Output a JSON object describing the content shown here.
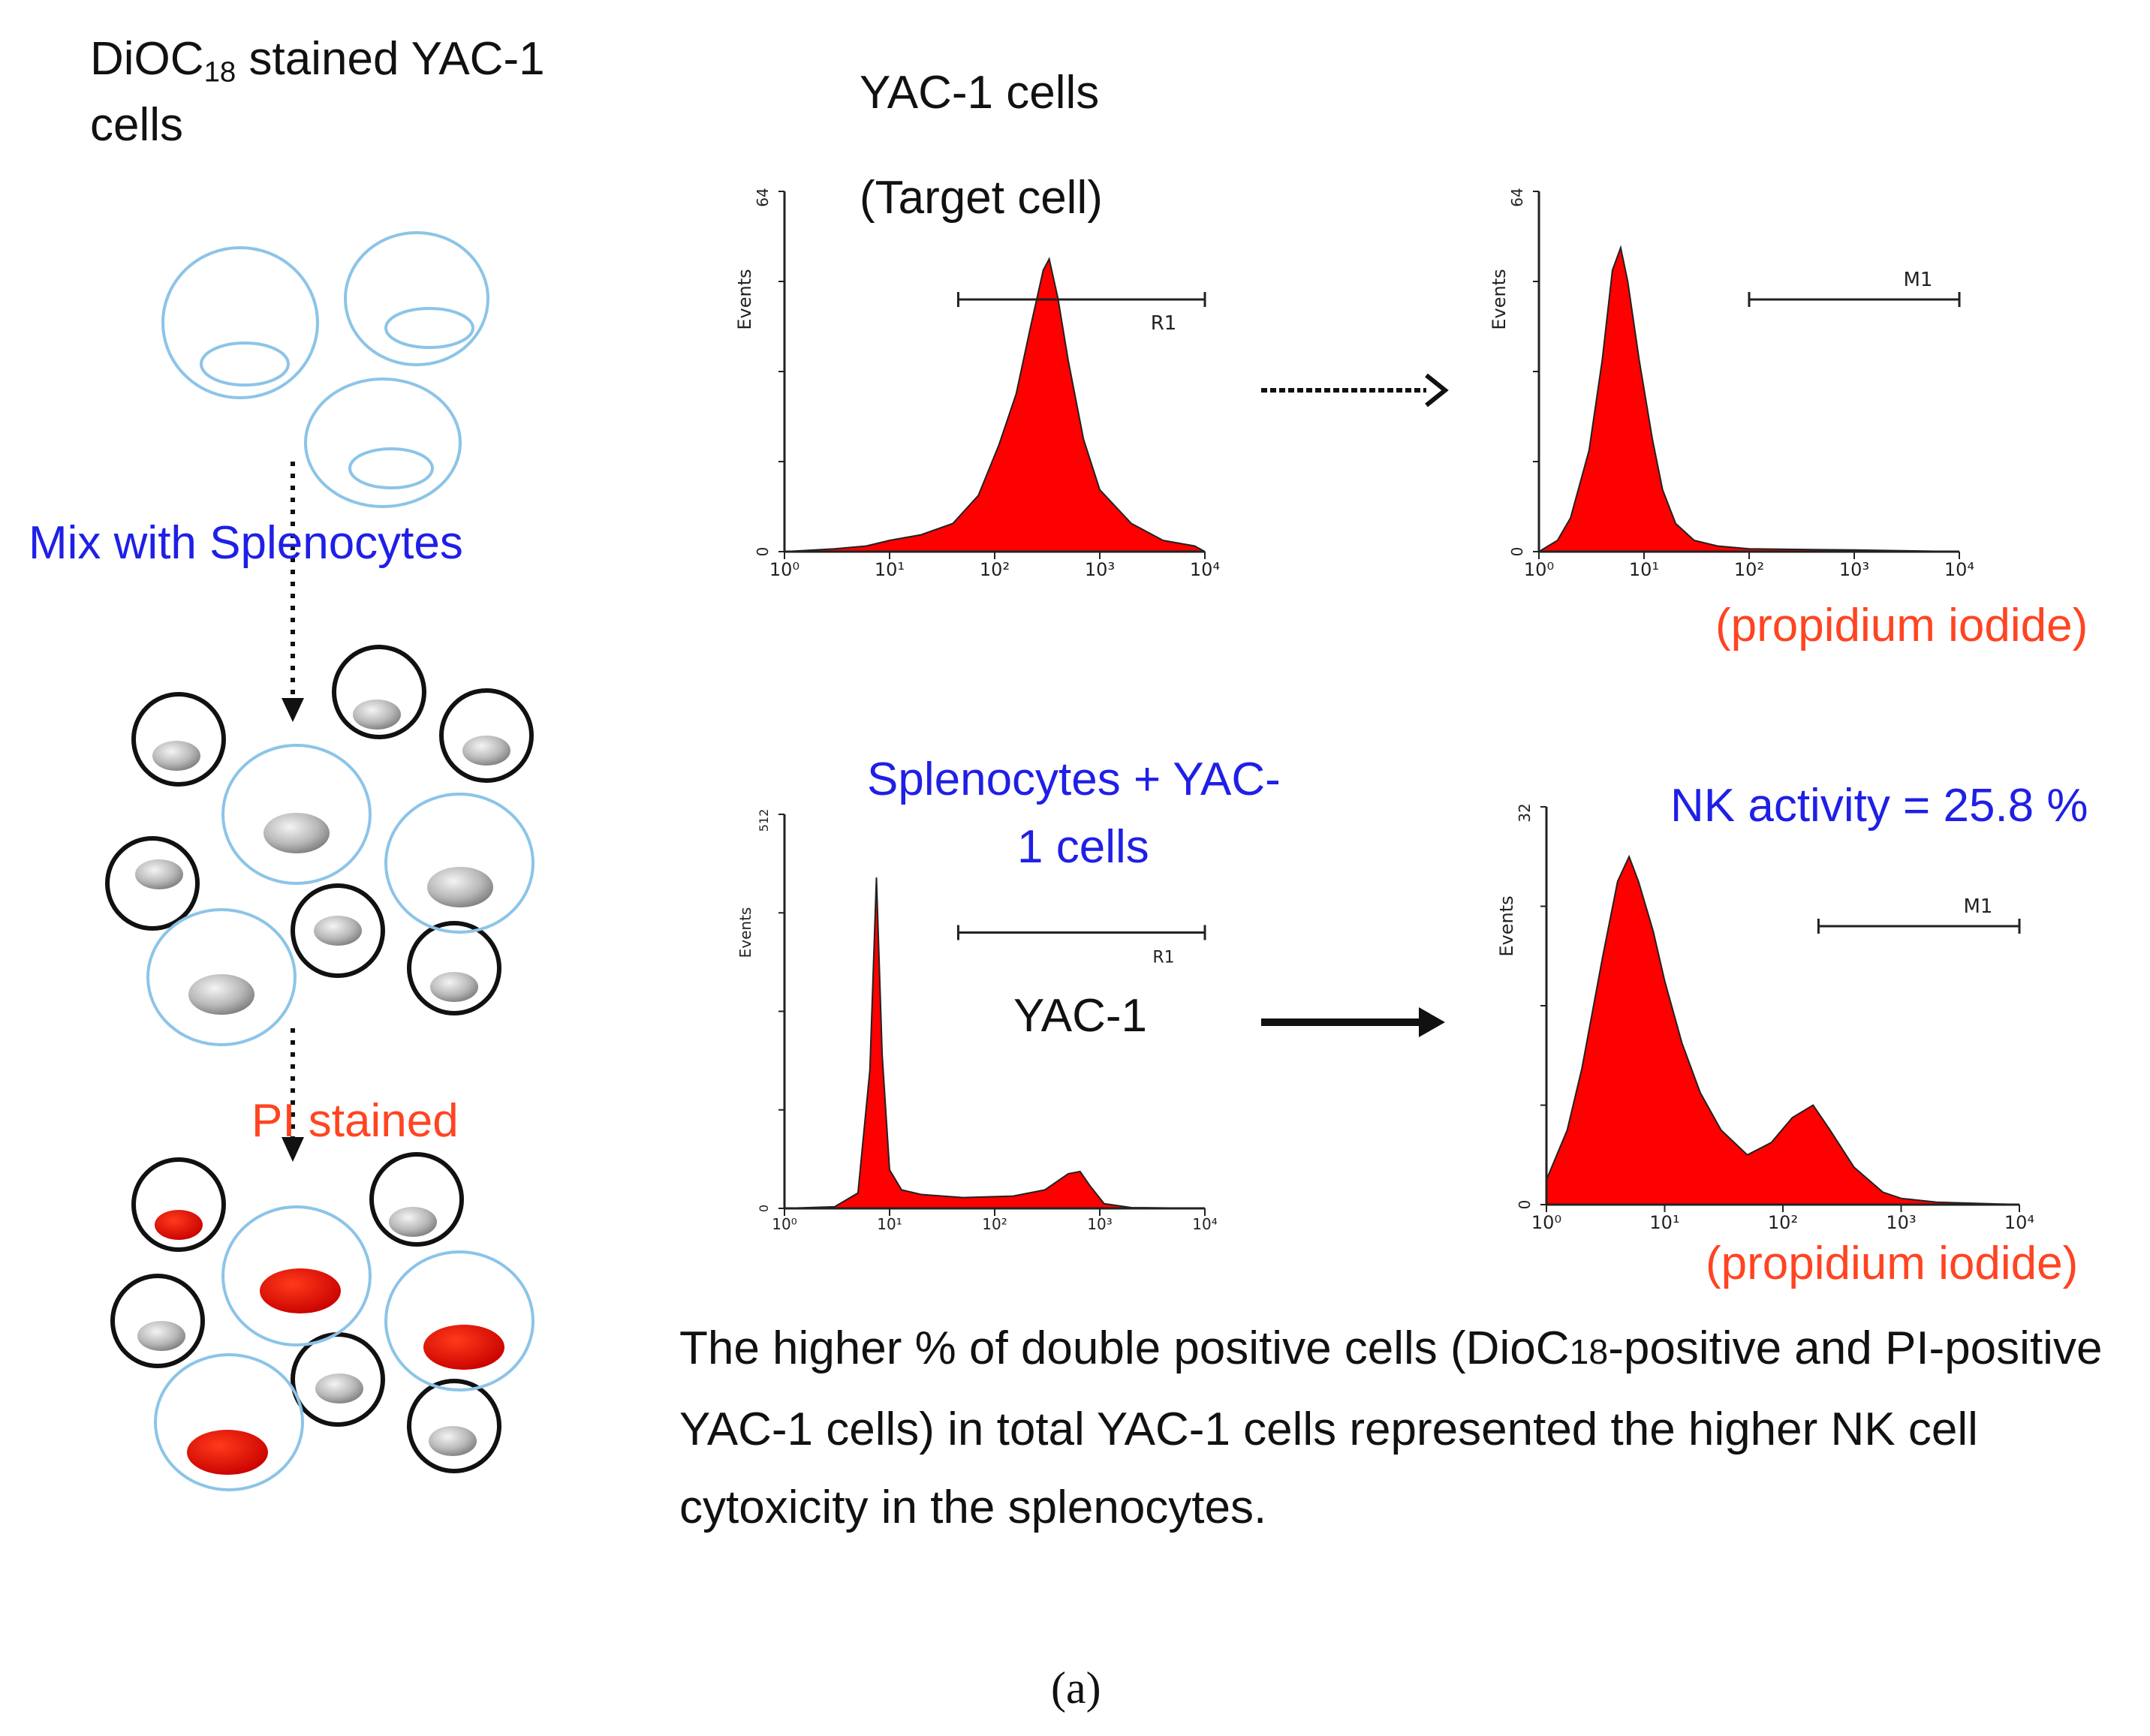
{
  "left_panel": {
    "title_main": "DiOC",
    "title_sub": "18",
    "title_rest": " stained YAC-1",
    "title_line2": "cells",
    "mix_label": "Mix with Splenocytes",
    "pi_label": "PI stained"
  },
  "top_section": {
    "title_line1": "YAC-1 cells",
    "title_line2": "(Target cell)"
  },
  "bottom_section": {
    "title_line1": "Splenocytes + YAC-",
    "title_line2": "1 cells",
    "gate_big_label": "YAC-1",
    "nk_activity": "NK activity = 25.8 %"
  },
  "pi_axis_label": "(propidium iodide)",
  "footnote": {
    "part1": "The higher % of double positive cells (DioC",
    "sub": "18",
    "part2": "-positive and PI-positive YAC-1 cells) in total YAC-1 cells represented the higher NK cell cytoxicity in the splenocytes."
  },
  "caption": "(a)",
  "colors": {
    "fill": "#ff0000",
    "cell_outline_blue": "#8cc4e8",
    "cell_outline_black": "#111111",
    "text_blue": "#1f1fe6",
    "text_red": "#ff4422"
  },
  "chart_data": [
    {
      "type": "area",
      "id": "hist-top-left",
      "xscale": "log",
      "x_tick_labels": [
        "10⁰",
        "10¹",
        "10²",
        "10³",
        "10⁴"
      ],
      "ylabel": "Events",
      "y_tick_labels": [
        "0",
        "64"
      ],
      "ylim": [
        0,
        64
      ],
      "gate_label": "R1",
      "gate_range": [
        45,
        10000
      ],
      "series": [
        {
          "name": "DiOC18",
          "x": [
            1,
            3,
            6,
            10,
            20,
            40,
            70,
            110,
            160,
            220,
            290,
            330,
            400,
            500,
            700,
            1000,
            2000,
            4000,
            8000,
            10000
          ],
          "y": [
            0,
            0.5,
            1,
            2,
            3,
            5,
            10,
            19,
            28,
            40,
            50,
            52,
            45,
            34,
            20,
            11,
            5,
            2,
            1,
            0
          ]
        }
      ]
    },
    {
      "type": "area",
      "id": "hist-top-right",
      "xscale": "log",
      "x_tick_labels": [
        "10⁰",
        "10¹",
        "10²",
        "10³",
        "10⁴"
      ],
      "ylabel": "Events",
      "y_tick_labels": [
        "0",
        "64"
      ],
      "ylim": [
        0,
        64
      ],
      "gate_label": "M1",
      "gate_range": [
        100,
        10000
      ],
      "series": [
        {
          "name": "PI",
          "x": [
            1,
            1.5,
            2,
            3,
            4,
            5,
            6,
            7,
            9,
            12,
            15,
            20,
            30,
            50,
            100,
            1000,
            10000
          ],
          "y": [
            0,
            2,
            6,
            18,
            34,
            50,
            54,
            48,
            34,
            20,
            11,
            5,
            2,
            1,
            0.5,
            0.3,
            0
          ]
        }
      ]
    },
    {
      "type": "area",
      "id": "hist-bottom-left",
      "xscale": "log",
      "x_tick_labels": [
        "10⁰",
        "10¹",
        "10²",
        "10³",
        "10⁴"
      ],
      "ylabel": "Events",
      "y_tick_labels": [
        "0",
        "512"
      ],
      "ylim": [
        0,
        512
      ],
      "gate_label": "R1",
      "gate_range": [
        45,
        10000
      ],
      "series": [
        {
          "name": "DiOC18",
          "x": [
            1,
            3,
            5,
            6.5,
            7.5,
            8.5,
            10,
            13,
            20,
            50,
            150,
            300,
            500,
            650,
            800,
            1100,
            2000,
            10000
          ],
          "y": [
            0,
            2,
            20,
            180,
            430,
            200,
            50,
            24,
            18,
            14,
            16,
            24,
            45,
            48,
            30,
            6,
            1,
            0
          ]
        }
      ]
    },
    {
      "type": "area",
      "id": "hist-bottom-right",
      "xscale": "log",
      "x_tick_labels": [
        "10⁰",
        "10¹",
        "10²",
        "10³",
        "10⁴"
      ],
      "ylabel": "Events",
      "y_tick_labels": [
        "0",
        "32"
      ],
      "ylim": [
        0,
        32
      ],
      "gate_label": "M1",
      "gate_range": [
        200,
        10000
      ],
      "series": [
        {
          "name": "PI",
          "x": [
            1,
            1.5,
            2,
            3,
            4,
            5,
            6,
            8,
            10,
            14,
            20,
            30,
            50,
            80,
            120,
            180,
            250,
            400,
            700,
            1000,
            2000,
            10000
          ],
          "y": [
            2,
            6,
            11,
            20,
            26,
            28,
            26,
            22,
            18,
            13,
            9,
            6,
            4,
            5,
            7,
            8,
            6,
            3,
            1,
            0.5,
            0.2,
            0
          ]
        }
      ]
    }
  ]
}
